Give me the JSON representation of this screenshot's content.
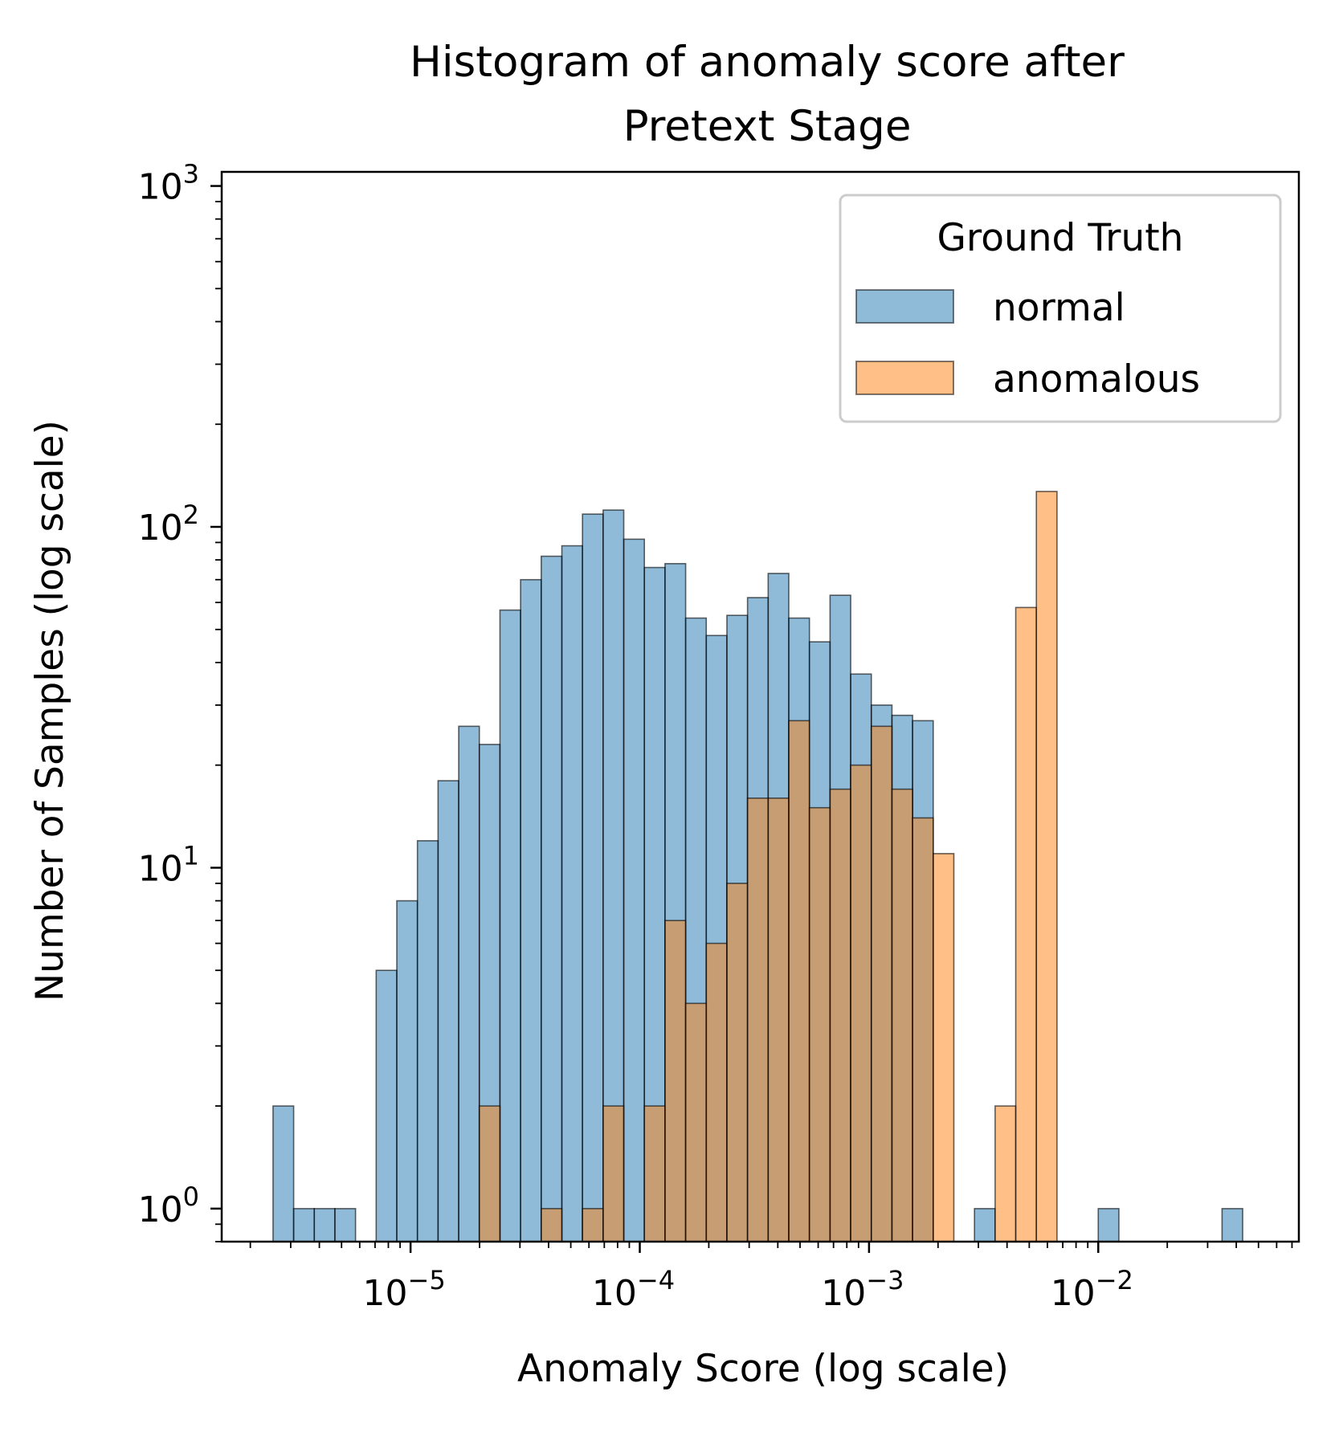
{
  "chart_data": {
    "type": "histogram",
    "title": [
      "Histogram of anomaly score after",
      "Pretext Stage"
    ],
    "xlabel": "Anomaly Score (log scale)",
    "ylabel": "Number of Samples (log scale)",
    "x_scale": "log",
    "y_scale": "log",
    "xlim": [
      1.5e-06,
      0.075
    ],
    "ylim": [
      0.8,
      1100
    ],
    "x_ticks": [
      {
        "value": 1e-05,
        "base": "10",
        "exp": "−5"
      },
      {
        "value": 0.0001,
        "base": "10",
        "exp": "−4"
      },
      {
        "value": 0.001,
        "base": "10",
        "exp": "−3"
      },
      {
        "value": 0.01,
        "base": "10",
        "exp": "−2"
      }
    ],
    "y_ticks": [
      {
        "value": 1,
        "base": "10",
        "exp": "0"
      },
      {
        "value": 10,
        "base": "10",
        "exp": "1"
      },
      {
        "value": 100,
        "base": "10",
        "exp": "2"
      },
      {
        "value": 1000,
        "base": "10",
        "exp": "3"
      }
    ],
    "grid": false,
    "legend": {
      "title": "Ground Truth",
      "position": "top-right",
      "entries": [
        "normal",
        "anomalous"
      ]
    },
    "bin_edges_log10": [
      -5.6,
      -5.51,
      -5.42,
      -5.33,
      -5.24,
      -5.15,
      -5.06,
      -4.97,
      -4.88,
      -4.79,
      -4.7,
      -4.61,
      -4.52,
      -4.43,
      -4.34,
      -4.25,
      -4.16,
      -4.07,
      -3.98,
      -3.89,
      -3.8,
      -3.71,
      -3.62,
      -3.53,
      -3.44,
      -3.35,
      -3.26,
      -3.17,
      -3.08,
      -2.99,
      -2.9,
      -2.81,
      -2.72,
      -2.63,
      -2.54,
      -2.45,
      -2.36,
      -2.27,
      -2.18,
      -2.09,
      -2.0,
      -1.91,
      -1.82,
      -1.73,
      -1.64,
      -1.55,
      -1.46,
      -1.37
    ],
    "series": [
      {
        "name": "normal",
        "color": "#1f77b4",
        "values": [
          2,
          1,
          1,
          1,
          0,
          5,
          8,
          12,
          18,
          26,
          23,
          57,
          70,
          82,
          88,
          109,
          112,
          92,
          76,
          78,
          54,
          48,
          55,
          62,
          73,
          54,
          46,
          63,
          37,
          30,
          28,
          27,
          0,
          0,
          1,
          0,
          0,
          0,
          0,
          0,
          1,
          0,
          0,
          0,
          0,
          0,
          1
        ]
      },
      {
        "name": "anomalous",
        "color": "#ff7f0e",
        "values": [
          0,
          0,
          0,
          0,
          0,
          0,
          0,
          0,
          0,
          0,
          2,
          0,
          0,
          1,
          0,
          1,
          2,
          0,
          2,
          7,
          4,
          6,
          9,
          16,
          16,
          27,
          15,
          17,
          20,
          26,
          17,
          14,
          11,
          0,
          0,
          2,
          58,
          127,
          0,
          0,
          0,
          0,
          0,
          0,
          0,
          0,
          0
        ]
      }
    ]
  }
}
